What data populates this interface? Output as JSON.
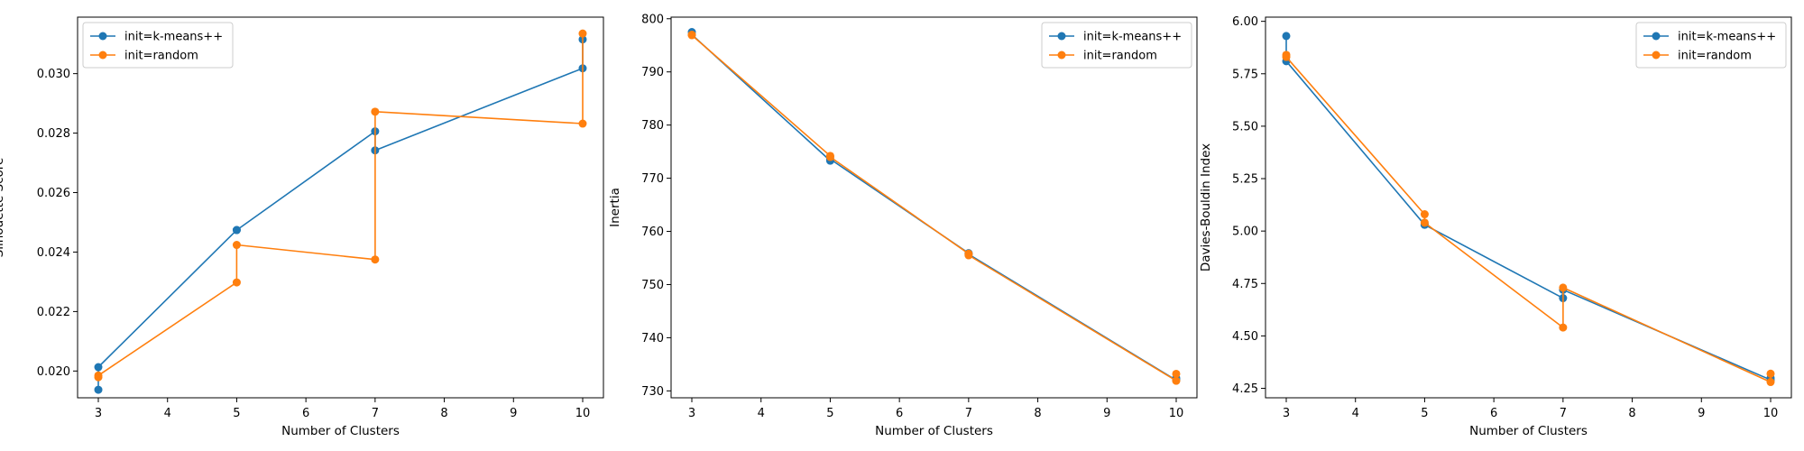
{
  "chart_data": [
    {
      "type": "line",
      "xlabel": "Number of Clusters",
      "ylabel": "Silhouette Score",
      "xlim": [
        2.7,
        10.3
      ],
      "ylim": [
        0.0191,
        0.0319
      ],
      "xticks": [
        3,
        4,
        5,
        6,
        7,
        8,
        9,
        10
      ],
      "yticks": [
        0.02,
        0.022,
        0.024,
        0.026,
        0.028,
        0.03
      ],
      "ytick_labels": [
        "0.020",
        "0.022",
        "0.024",
        "0.026",
        "0.028",
        "0.030"
      ],
      "legend_position": "upper-left",
      "series": [
        {
          "name": "init=k-means++",
          "color": "#1f77b4",
          "x": [
            3,
            3,
            5,
            5,
            7,
            7,
            10,
            10
          ],
          "y": [
            0.01937,
            0.02013,
            0.02474,
            0.02474,
            0.02806,
            0.02742,
            0.03018,
            0.03115
          ]
        },
        {
          "name": "init=random",
          "color": "#ff7f0e",
          "x": [
            3,
            3,
            5,
            5,
            7,
            7,
            10,
            10
          ],
          "y": [
            0.01979,
            0.01985,
            0.02298,
            0.02424,
            0.02375,
            0.02872,
            0.02832,
            0.03135
          ]
        }
      ]
    },
    {
      "type": "line",
      "xlabel": "Number of Clusters",
      "ylabel": "Inertia",
      "xlim": [
        2.7,
        10.3
      ],
      "ylim": [
        728.7,
        800.3
      ],
      "xticks": [
        3,
        4,
        5,
        6,
        7,
        8,
        9,
        10
      ],
      "yticks": [
        730,
        740,
        750,
        760,
        770,
        780,
        790,
        800
      ],
      "ytick_labels": [
        "730",
        "740",
        "750",
        "760",
        "770",
        "780",
        "790",
        "800"
      ],
      "legend_position": "upper-right",
      "series": [
        {
          "name": "init=k-means++",
          "color": "#1f77b4",
          "x": [
            3,
            3,
            5,
            5,
            7,
            7,
            10,
            10
          ],
          "y": [
            797.5,
            797.0,
            773.3,
            773.6,
            755.9,
            755.7,
            732.0,
            732.4
          ]
        },
        {
          "name": "init=random",
          "color": "#ff7f0e",
          "x": [
            3,
            3,
            5,
            5,
            7,
            7,
            10,
            10
          ],
          "y": [
            797.0,
            796.9,
            774.2,
            774.0,
            755.8,
            755.5,
            731.9,
            733.2
          ]
        }
      ]
    },
    {
      "type": "line",
      "xlabel": "Number of Clusters",
      "ylabel": "Davies-Bouldin Index",
      "xlim": [
        2.7,
        10.3
      ],
      "ylim": [
        4.205,
        6.02
      ],
      "xticks": [
        3,
        4,
        5,
        6,
        7,
        8,
        9,
        10
      ],
      "yticks": [
        4.25,
        4.5,
        4.75,
        5.0,
        5.25,
        5.5,
        5.75,
        6.0
      ],
      "ytick_labels": [
        "4.25",
        "4.50",
        "4.75",
        "5.00",
        "5.25",
        "5.50",
        "5.75",
        "6.00"
      ],
      "legend_position": "upper-right",
      "series": [
        {
          "name": "init=k-means++",
          "color": "#1f77b4",
          "x": [
            3,
            3,
            5,
            5,
            7,
            7,
            10,
            10
          ],
          "y": [
            5.93,
            5.81,
            5.03,
            5.03,
            4.68,
            4.72,
            4.29,
            4.3
          ]
        },
        {
          "name": "init=random",
          "color": "#ff7f0e",
          "x": [
            3,
            3,
            5,
            5,
            7,
            7,
            10,
            10
          ],
          "y": [
            5.84,
            5.83,
            5.08,
            5.04,
            4.54,
            4.73,
            4.28,
            4.32
          ]
        }
      ]
    }
  ]
}
